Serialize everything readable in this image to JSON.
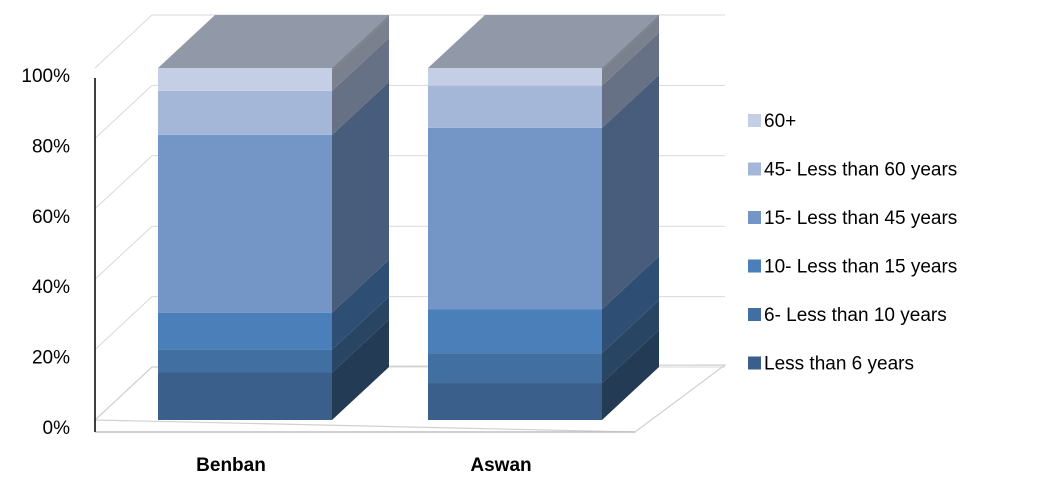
{
  "chart_data": {
    "type": "bar",
    "stacked": true,
    "percent": true,
    "style": "3d",
    "categories": [
      "Benban",
      "Aswan"
    ],
    "yticks": [
      "0%",
      "20%",
      "40%",
      "60%",
      "80%",
      "100%"
    ],
    "ylim": [
      0,
      100
    ],
    "grid": true,
    "legend_position": "right",
    "series": [
      {
        "name": "Less than 6 years",
        "values": [
          13.5,
          10.5
        ],
        "color": "#3a5f8a"
      },
      {
        "name": "6- Less than 10 years",
        "values": [
          6.5,
          8.5
        ],
        "color": "#416fa1"
      },
      {
        "name": "10- Less than 15 years",
        "values": [
          10.5,
          12.5
        ],
        "color": "#4a7fba"
      },
      {
        "name": "15- Less than 45 years",
        "values": [
          50.5,
          51.5
        ],
        "color": "#7396c6"
      },
      {
        "name": "45- Less than 60 years",
        "values": [
          12.5,
          12
        ],
        "color": "#a4b7d8"
      },
      {
        "name": "60+",
        "values": [
          6.5,
          5
        ],
        "color": "#c4cfe5"
      }
    ]
  }
}
